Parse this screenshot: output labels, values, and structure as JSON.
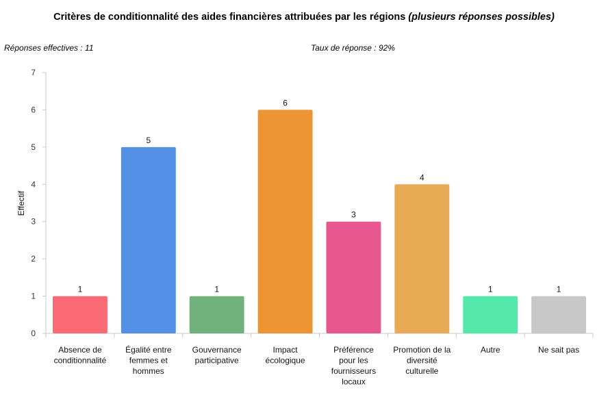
{
  "chart_data": {
    "type": "bar",
    "title": "Critères de conditionnalité des aides financières attribuées par les régions",
    "title_note": "(plusieurs réponses possibles)",
    "annotations": {
      "left": "Réponses effectives : 11",
      "right": "Taux de réponse : 92%"
    },
    "xlabel": "",
    "ylabel": "Effectif",
    "ylim": [
      0,
      7
    ],
    "yticks": [
      "0",
      "1",
      "2",
      "3",
      "4",
      "5",
      "6",
      "7"
    ],
    "categories": [
      [
        "Absence de",
        "conditionnalité"
      ],
      [
        "Égalité entre",
        "femmes et",
        "hommes"
      ],
      [
        "Gouvernance",
        "participative"
      ],
      [
        "Impact",
        "écologique"
      ],
      [
        "Préférence",
        "pour les",
        "fournisseurs",
        "locaux"
      ],
      [
        "Promotion de la",
        "diversité",
        "culturelle"
      ],
      [
        "Autre"
      ],
      [
        "Ne sait pas"
      ]
    ],
    "values": [
      1,
      5,
      1,
      6,
      3,
      4,
      1,
      1
    ],
    "value_labels": [
      "1",
      "5",
      "1",
      "6",
      "3",
      "4",
      "1",
      "1"
    ],
    "colors": [
      "#f96a74",
      "#5291e6",
      "#71b27c",
      "#ec9532",
      "#e8578f",
      "#e8aa54",
      "#54e8ab",
      "#c8c8c8"
    ]
  }
}
